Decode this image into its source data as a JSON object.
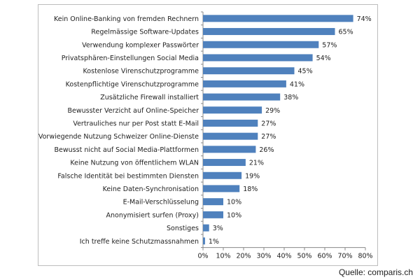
{
  "chart_data": {
    "type": "bar",
    "orientation": "horizontal",
    "categories": [
      "Kein Online-Banking von fremden Rechnern",
      "Regelmässige Software-Updates",
      "Verwendung komplexer Passwörter",
      "Privatsphären-Einstellungen Social Media",
      "Kostenlose Virenschutzprogramme",
      "Kostenpflichtige Virenschutzprogramme",
      "Zusätzliche Firewall installiert",
      "Bewusster Verzicht auf Online-Speicher",
      "Vertrauliches nur per Post statt E-Mail",
      "Vorwiegende Nutzung Schweizer Online-Dienste",
      "Bewusst nicht auf Social Media-Plattformen",
      "Keine Nutzung von öffentlichem WLAN",
      "Falsche Identität bei bestimmten Diensten",
      "Keine Daten-Synchronisation",
      "E-Mail-Verschlüsselung",
      "Anonymisiert surfen (Proxy)",
      "Sonstiges",
      "Ich treffe keine Schutzmassnahmen"
    ],
    "values": [
      74,
      65,
      57,
      54,
      45,
      41,
      38,
      29,
      27,
      27,
      26,
      21,
      19,
      18,
      10,
      10,
      3,
      1
    ],
    "value_labels": [
      "74%",
      "65%",
      "57%",
      "54%",
      "45%",
      "41%",
      "38%",
      "29%",
      "27%",
      "27%",
      "26%",
      "21%",
      "19%",
      "18%",
      "10%",
      "10%",
      "3%",
      "1%"
    ],
    "xlim": [
      0,
      80
    ],
    "xticks": [
      0,
      10,
      20,
      30,
      40,
      50,
      60,
      70,
      80
    ],
    "xtick_labels": [
      "0%",
      "10%",
      "20%",
      "30%",
      "40%",
      "50%",
      "60%",
      "70%",
      "80%"
    ],
    "bar_color": "#4f81bd",
    "grid": false,
    "legend": "none"
  },
  "source": "Quelle: comparis.ch"
}
